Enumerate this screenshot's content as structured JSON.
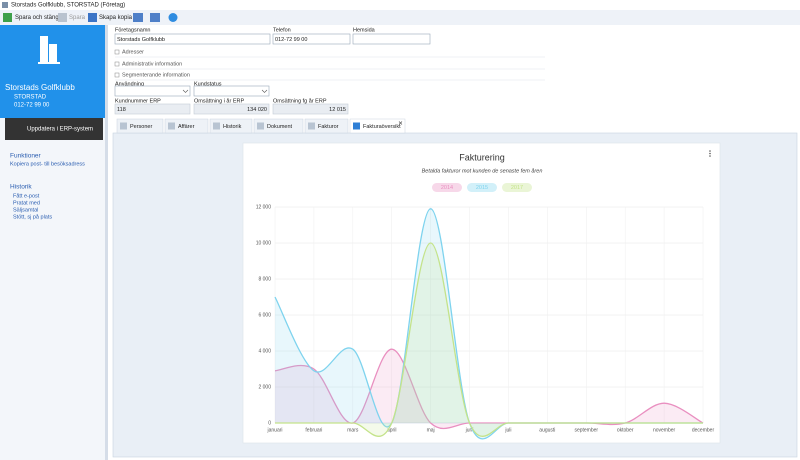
{
  "window": {
    "title": "Storstads Golfklubb, STORSTAD (Företag)"
  },
  "toolbar": {
    "save_close": "Spara och stäng",
    "save": "Spara",
    "copy": "Skapa kopia"
  },
  "sidebar": {
    "company": "Storstads Golfklubb",
    "city": "STORSTAD",
    "phone": "012-72 99 00",
    "erp_button": "Uppdatera i ERP-system",
    "functions": {
      "title": "Funktioner",
      "items": [
        "Kopiera post- till besöksadress"
      ]
    },
    "history": {
      "title": "Historik",
      "items": [
        "Fått e-post",
        "Pratat med",
        "Säljsamtal",
        "Stött, sj på plats"
      ]
    }
  },
  "form": {
    "fields": [
      {
        "label": "Företagsnamn",
        "value": "Storstads Golfklubb"
      },
      {
        "label": "Telefon",
        "value": "012-72 99 00"
      },
      {
        "label": "Hemsida"
      }
    ],
    "sections": [
      "Adresser",
      "Administrativ information",
      "Segmenterande information"
    ],
    "selects": [
      "Användning",
      "Kundstatus"
    ],
    "erp": [
      {
        "label": "Kundnummer ERP",
        "value": "118"
      },
      {
        "label": "Omsättning i år ERP",
        "value": "134 020"
      },
      {
        "label": "Omsättning fg år ERP",
        "value": "12 015"
      }
    ]
  },
  "tabs": [
    "Personer",
    "Affärer",
    "Historik",
    "Dokument",
    "Fakturor",
    "Fakturaöversikt"
  ],
  "chart_data": {
    "type": "area",
    "title": "Fakturering",
    "subtitle": "Betalda fakturor mot kunden de senaste fem åren",
    "categories": [
      "januari",
      "februari",
      "mars",
      "april",
      "maj",
      "juni",
      "juli",
      "augusti",
      "september",
      "oktober",
      "november",
      "december"
    ],
    "series": [
      {
        "name": "2014",
        "color": "#e98fc0",
        "values": [
          2900,
          3000,
          0,
          4100,
          0,
          0,
          0,
          0,
          0,
          0,
          1100,
          0
        ]
      },
      {
        "name": "2015",
        "color": "#7ed3ee",
        "values": [
          7000,
          2900,
          4100,
          0,
          11900,
          0,
          0,
          0,
          0,
          0,
          0,
          0
        ]
      },
      {
        "name": "2017",
        "color": "#c4e38a",
        "values": [
          0,
          0,
          0,
          0,
          10000,
          0,
          0,
          0,
          0,
          0,
          0,
          0
        ]
      }
    ],
    "ylim": [
      0,
      12000
    ],
    "yticks": [
      0,
      {
        "value": 2000,
        "label": "2 000"
      },
      {
        "value": 4000,
        "label": "4 000"
      },
      {
        "value": 6000,
        "label": "6 000"
      },
      {
        "value": 8000,
        "label": "8 000"
      },
      {
        "value": 10000,
        "label": "10 000"
      },
      {
        "value": 12000,
        "label": "12 000"
      }
    ],
    "grid": true
  }
}
